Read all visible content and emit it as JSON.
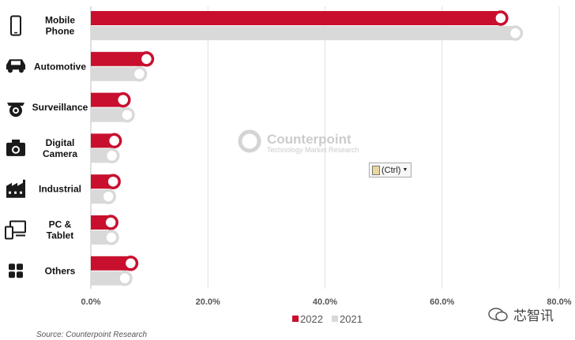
{
  "chart_data": {
    "type": "bar",
    "orientation": "horizontal",
    "categories": [
      "Mobile Phone",
      "Automotive",
      "Surveillance",
      "Digital Camera",
      "Industrial",
      "PC & Tablet",
      "Others"
    ],
    "category_lines": [
      [
        "Mobile",
        "Phone"
      ],
      [
        "Automotive"
      ],
      [
        "Surveillance"
      ],
      [
        "Digital",
        "Camera"
      ],
      [
        "Industrial"
      ],
      [
        "PC &",
        "Tablet"
      ],
      [
        "Others"
      ]
    ],
    "icons": [
      "smartphone-icon",
      "car-icon",
      "security-camera-icon",
      "camera-icon",
      "factory-icon",
      "pc-tablet-icon",
      "grid-icon"
    ],
    "series": [
      {
        "name": "2022",
        "color": "#c8102e",
        "values": [
          70.0,
          9.5,
          5.5,
          4.0,
          3.8,
          3.4,
          6.8
        ]
      },
      {
        "name": "2021",
        "color": "#d9d9d9",
        "values": [
          72.5,
          8.3,
          6.2,
          3.6,
          3.0,
          3.5,
          5.8
        ]
      }
    ],
    "xlim": [
      0,
      80
    ],
    "xticks": [
      "0.0%",
      "20.0%",
      "40.0%",
      "60.0%",
      "80.0%"
    ],
    "grid": true,
    "legend": "bottom-center"
  },
  "watermark": {
    "title": "Counterpoint",
    "subtitle": "Technology Market Research"
  },
  "paste_button": {
    "label": "(Ctrl)"
  },
  "source": "Source: Counterpoint Research",
  "brand": {
    "label": "芯智讯",
    "icon": "wechat-icon"
  }
}
